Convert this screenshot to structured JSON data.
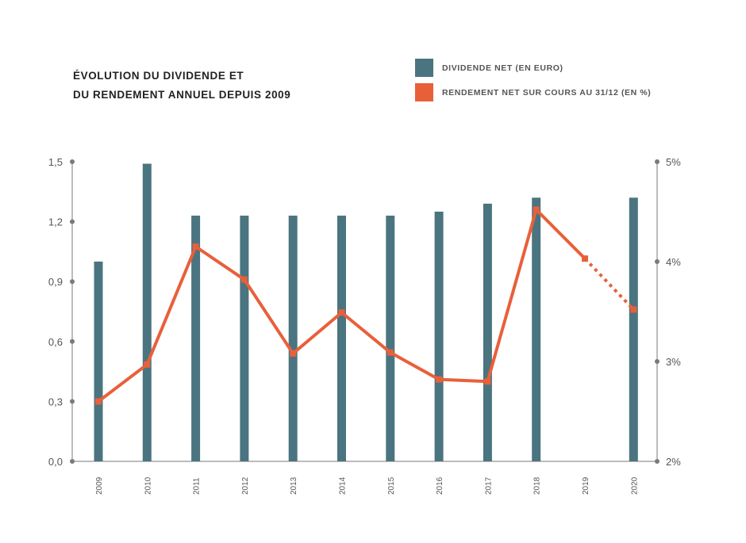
{
  "colors": {
    "bar": "#4a7480",
    "line": "#e8603a",
    "axis": "#7a7a7a",
    "text": "#555555"
  },
  "chart_data": {
    "type": "bar",
    "title_lines": [
      "ÉVOLUTION DU DIVIDENDE ET",
      "DU RENDEMENT ANNUEL DEPUIS 2009"
    ],
    "categories": [
      "2009",
      "2010",
      "2011",
      "2012",
      "2013",
      "2014",
      "2015",
      "2016",
      "2017",
      "2018",
      "2019",
      "2020"
    ],
    "series": [
      {
        "name": "DIVIDENDE NET (EN EURO)",
        "type": "bar",
        "axis": "left",
        "values": [
          1.0,
          1.49,
          1.23,
          1.23,
          1.23,
          1.23,
          1.23,
          1.25,
          1.29,
          1.32,
          null,
          1.32
        ]
      },
      {
        "name": "RENDEMENT NET SUR COURS AU 31/12 (EN %)",
        "type": "line",
        "axis": "right",
        "values": [
          2.6,
          2.97,
          4.15,
          3.82,
          3.08,
          3.49,
          3.09,
          2.82,
          2.8,
          4.52,
          4.03,
          3.52
        ],
        "dashed_from_index": 10
      }
    ],
    "y_left": {
      "range": [
        0,
        1.5
      ],
      "ticks": [
        "0,0",
        "0,3",
        "0,6",
        "0,9",
        "1,2",
        "1,5"
      ],
      "tick_values": [
        0,
        0.3,
        0.6,
        0.9,
        1.2,
        1.5
      ]
    },
    "y_right": {
      "range": [
        2,
        5
      ],
      "ticks": [
        "2%",
        "3%",
        "4%",
        "5%"
      ],
      "tick_values": [
        2,
        3,
        4,
        5
      ]
    },
    "legend_position": "top-right"
  }
}
